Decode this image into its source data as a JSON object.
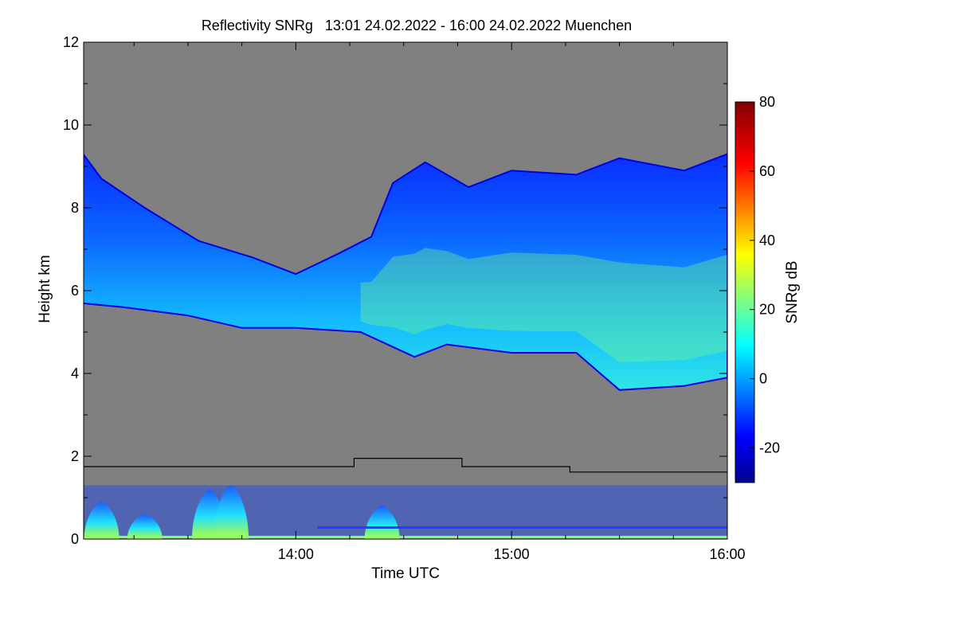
{
  "chart_data": {
    "type": "heatmap",
    "title": "Reflectivity SNRg   13:01 24.02.2022 - 16:00 24.02.2022 Muenchen",
    "xlabel": "Time UTC",
    "ylabel": "Height km",
    "x_start": "13:01",
    "x_end": "16:00",
    "xlim_hours": [
      13.01667,
      16.0
    ],
    "x_ticks": [
      {
        "hour": 14.0,
        "label": "14:00"
      },
      {
        "hour": 15.0,
        "label": "15:00"
      },
      {
        "hour": 16.0,
        "label": "16:00"
      }
    ],
    "ylim": [
      0,
      12
    ],
    "y_ticks": [
      0,
      2,
      4,
      6,
      8,
      10,
      12
    ],
    "background_color": "#808080",
    "colorbar": {
      "label": "SNRg dB",
      "range": [
        -30,
        80
      ],
      "ticks": [
        -20,
        0,
        20,
        40,
        60,
        80
      ],
      "colormap": "jet"
    },
    "cloud_layer": {
      "top_km": [
        [
          13.0,
          9.4
        ],
        [
          13.1,
          8.7
        ],
        [
          13.3,
          8.0
        ],
        [
          13.55,
          7.2
        ],
        [
          13.8,
          6.8
        ],
        [
          14.0,
          6.4
        ],
        [
          14.2,
          6.9
        ],
        [
          14.35,
          7.3
        ],
        [
          14.45,
          8.6
        ],
        [
          14.6,
          9.1
        ],
        [
          14.8,
          8.5
        ],
        [
          15.0,
          8.9
        ],
        [
          15.3,
          8.8
        ],
        [
          15.5,
          9.2
        ],
        [
          15.8,
          8.9
        ],
        [
          16.0,
          9.3
        ]
      ],
      "base_km": [
        [
          13.0,
          5.7
        ],
        [
          13.2,
          5.6
        ],
        [
          13.5,
          5.4
        ],
        [
          13.75,
          5.1
        ],
        [
          14.0,
          5.1
        ],
        [
          14.3,
          5.0
        ],
        [
          14.55,
          4.4
        ],
        [
          14.7,
          4.7
        ],
        [
          15.0,
          4.5
        ],
        [
          15.3,
          4.5
        ],
        [
          15.5,
          3.6
        ],
        [
          15.8,
          3.7
        ],
        [
          16.0,
          3.9
        ]
      ],
      "peak_snr_db": 25
    },
    "boundary_layer_height_km": [
      [
        13.0,
        1.75
      ],
      [
        14.27,
        1.75
      ],
      [
        14.27,
        1.95
      ],
      [
        14.77,
        1.95
      ],
      [
        14.77,
        1.75
      ],
      [
        15.27,
        1.75
      ],
      [
        15.27,
        1.62
      ],
      [
        16.0,
        1.62
      ]
    ],
    "near_surface_echo_plumes": [
      {
        "hour": 13.1,
        "top_km": 0.9,
        "snr_db": 35
      },
      {
        "hour": 13.3,
        "top_km": 0.6,
        "snr_db": 30
      },
      {
        "hour": 13.6,
        "top_km": 1.2,
        "snr_db": 28
      },
      {
        "hour": 13.7,
        "top_km": 1.3,
        "snr_db": 32
      },
      {
        "hour": 14.4,
        "top_km": 0.8,
        "snr_db": 30
      }
    ]
  }
}
